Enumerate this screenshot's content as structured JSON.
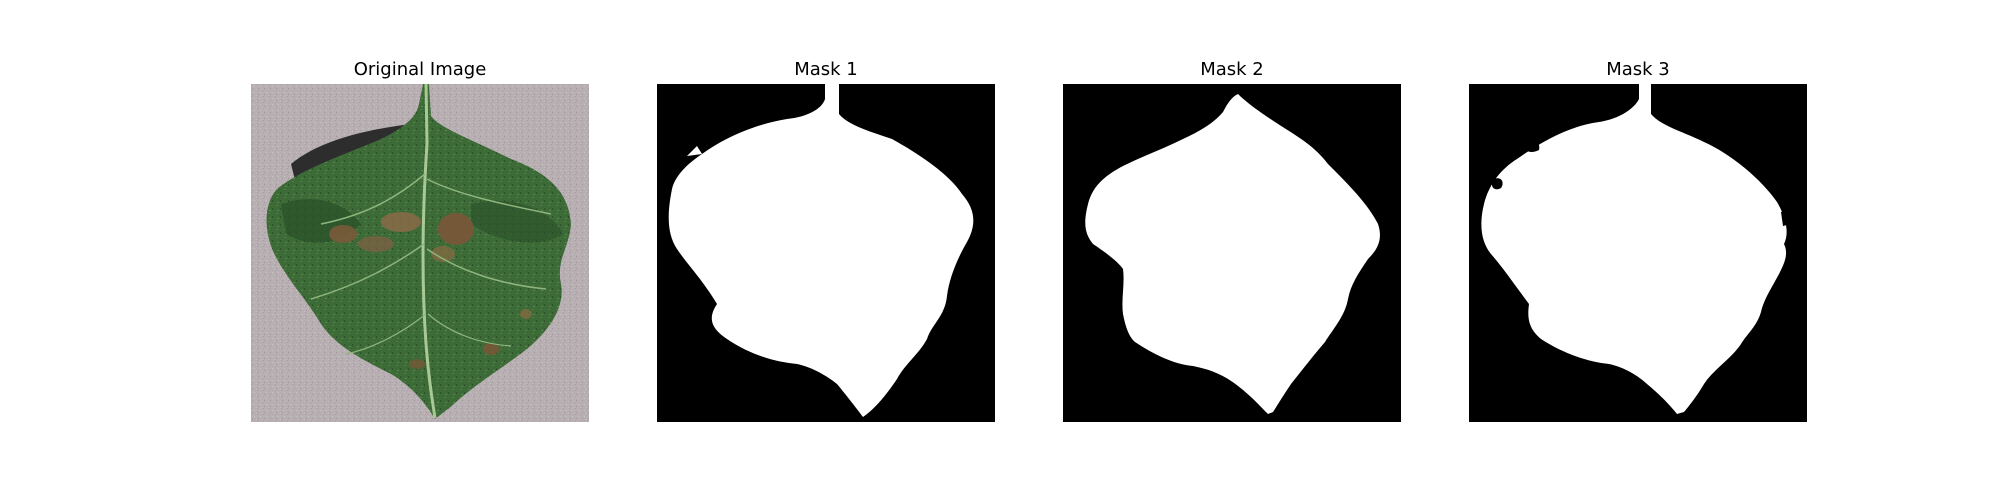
{
  "figure": {
    "panels": [
      {
        "title": "Original Image",
        "kind": "photo",
        "subject": "leaf-photo"
      },
      {
        "title": "Mask 1",
        "kind": "mask",
        "mask_variant": 1
      },
      {
        "title": "Mask 2",
        "kind": "mask",
        "mask_variant": 2
      },
      {
        "title": "Mask 3",
        "kind": "mask",
        "mask_variant": 3
      }
    ]
  },
  "colors": {
    "background": "#ffffff",
    "mask_background": "#000000",
    "mask_foreground": "#ffffff",
    "photo_background": "#b7adb1",
    "leaf_dark": "#2f5a2f",
    "leaf_mid": "#3e6e3a",
    "leaf_light": "#5f8a4f",
    "lesion": "#7a5a3a",
    "vein": "#9cbf8a"
  }
}
